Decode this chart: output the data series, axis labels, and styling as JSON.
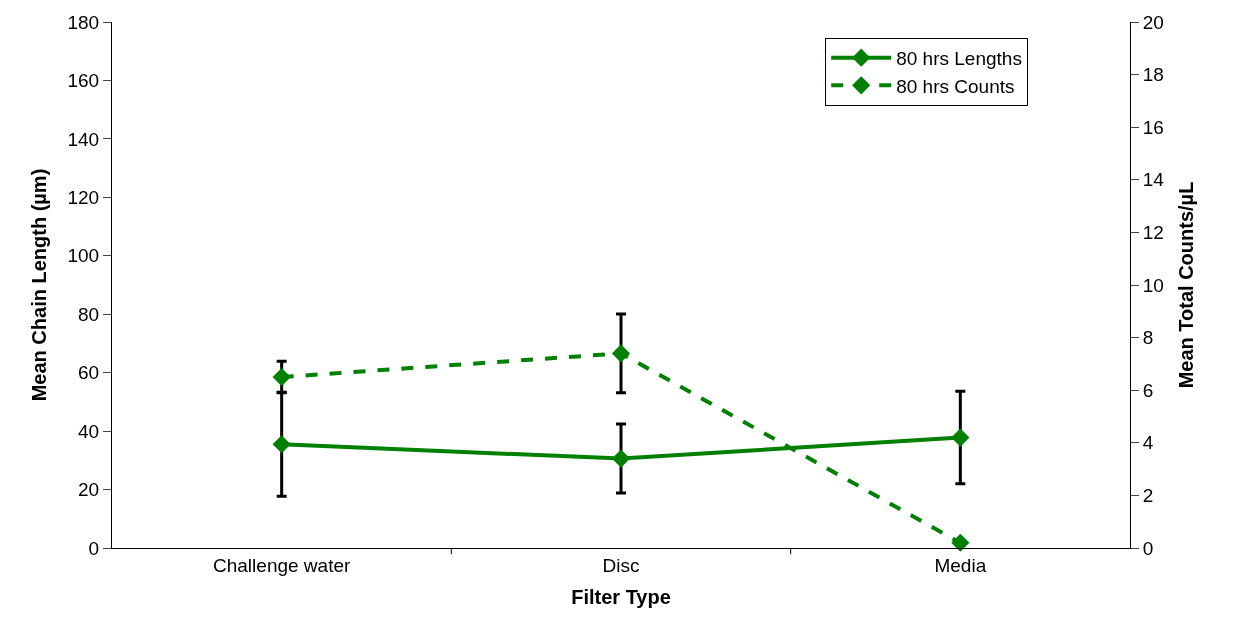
{
  "chart_data": {
    "type": "line",
    "xlabel": "Filter Type",
    "ylabel": "Mean Chain Length (µm)",
    "y2label": "Mean Total Counts/µL",
    "categories": [
      "Challenge water",
      "Disc",
      "Media"
    ],
    "series": [
      {
        "name": "80 hrs Lengths",
        "color": "#008000",
        "values": [
          35.5,
          30.6,
          37.8
        ],
        "errors": [
          17.8,
          11.8,
          15.8
        ],
        "line_style": "solid"
      },
      {
        "name": "80 hrs Counts",
        "color": "#008000",
        "values": [
          6.5,
          7.4,
          0.2
        ],
        "errors": [
          0.6,
          1.5,
          null
        ],
        "line_style": "dashed",
        "axis": "y2"
      }
    ],
    "ylim": [
      0,
      180
    ],
    "yticks": [
      0,
      20,
      40,
      60,
      80,
      100,
      120,
      140,
      160,
      180
    ],
    "y2lim": [
      0,
      20
    ],
    "y2ticks": [
      0,
      2,
      4,
      6,
      8,
      10,
      12,
      14,
      16,
      18,
      20
    ],
    "marker": "diamond",
    "legend": "top right"
  }
}
